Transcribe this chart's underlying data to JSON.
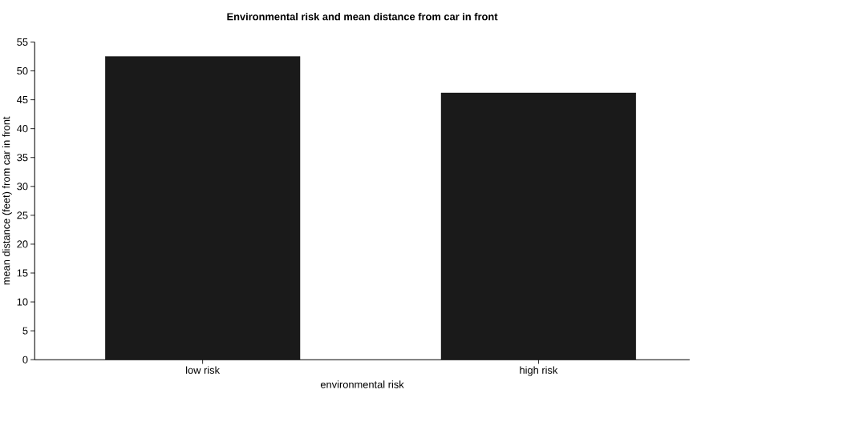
{
  "chart_data": {
    "type": "bar",
    "title": "Environmental risk and mean distance from car in front",
    "xlabel": "environmental risk",
    "ylabel": "mean distance (feet) from car in front",
    "categories": [
      "low risk",
      "high risk"
    ],
    "values": [
      52.5,
      46.2
    ],
    "color": "#1a1a1a",
    "ylim": [
      0,
      55
    ],
    "yticks": [
      0,
      5,
      10,
      15,
      20,
      25,
      30,
      35,
      40,
      45,
      50,
      55
    ],
    "grid": false
  }
}
